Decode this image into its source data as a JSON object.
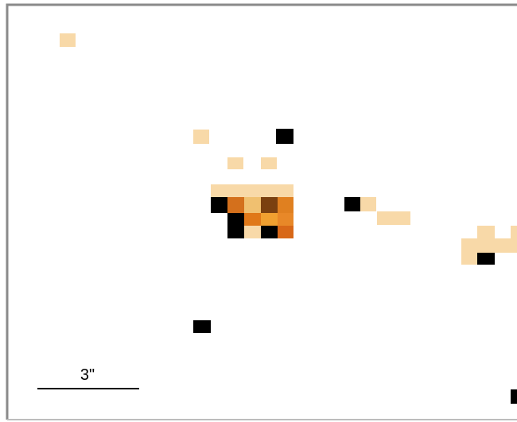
{
  "scale_bar": {
    "label": "3\""
  }
}
